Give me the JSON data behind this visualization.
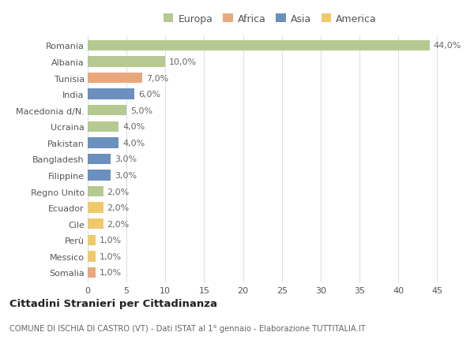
{
  "countries": [
    "Romania",
    "Albania",
    "Tunisia",
    "India",
    "Macedonia d/N.",
    "Ucraina",
    "Pakistan",
    "Bangladesh",
    "Filippine",
    "Regno Unito",
    "Ecuador",
    "Cile",
    "Perù",
    "Messico",
    "Somalia"
  ],
  "values": [
    44.0,
    10.0,
    7.0,
    6.0,
    5.0,
    4.0,
    4.0,
    3.0,
    3.0,
    2.0,
    2.0,
    2.0,
    1.0,
    1.0,
    1.0
  ],
  "labels": [
    "44,0%",
    "10,0%",
    "7,0%",
    "6,0%",
    "5,0%",
    "4,0%",
    "4,0%",
    "3,0%",
    "3,0%",
    "2,0%",
    "2,0%",
    "2,0%",
    "1,0%",
    "1,0%",
    "1,0%"
  ],
  "colors": [
    "#b5c990",
    "#b5c990",
    "#e8a87c",
    "#6b8fbe",
    "#b5c990",
    "#b5c990",
    "#6b8fbe",
    "#6b8fbe",
    "#6b8fbe",
    "#b5c990",
    "#f0c96b",
    "#f0c96b",
    "#f0c96b",
    "#f0c96b",
    "#e8a87c"
  ],
  "legend": {
    "Europa": "#b5c990",
    "Africa": "#e8a87c",
    "Asia": "#6b8fbe",
    "America": "#f0c96b"
  },
  "title": "Cittadini Stranieri per Cittadinanza",
  "subtitle": "COMUNE DI ISCHIA DI CASTRO (VT) - Dati ISTAT al 1° gennaio - Elaborazione TUTTITALIA.IT",
  "xlim": [
    0,
    47
  ],
  "xticks": [
    0,
    5,
    10,
    15,
    20,
    25,
    30,
    35,
    40,
    45
  ],
  "bg_color": "#ffffff",
  "grid_color": "#e0e0e0",
  "bar_height": 0.65,
  "label_fontsize": 8.0,
  "tick_fontsize": 8.0,
  "legend_fontsize": 9.0
}
